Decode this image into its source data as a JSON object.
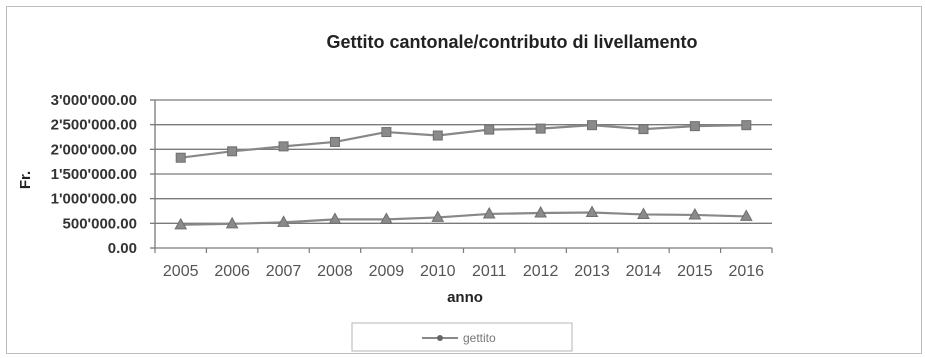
{
  "chart_data": {
    "type": "line",
    "title": "Gettito cantonale/contributo di livellamento",
    "xlabel": "anno",
    "ylabel": "Fr.",
    "categories": [
      "2005",
      "2006",
      "2007",
      "2008",
      "2009",
      "2010",
      "2011",
      "2012",
      "2013",
      "2014",
      "2015",
      "2016"
    ],
    "y_tick_labels": [
      "0.00",
      "500'000.00",
      "1'000'000.00",
      "1'500'000.00",
      "2'000'000.00",
      "2'500'000.00",
      "3'000'000.00"
    ],
    "ylim": [
      0,
      3000000
    ],
    "grid": true,
    "legend_position": "bottom",
    "series": [
      {
        "name": "",
        "marker": "square",
        "color": "#888888",
        "values": [
          1830000,
          1960000,
          2060000,
          2150000,
          2350000,
          2280000,
          2400000,
          2420000,
          2490000,
          2410000,
          2470000,
          2490000
        ]
      },
      {
        "name": "gettito",
        "marker": "triangle",
        "color": "#888888",
        "values": [
          470000,
          490000,
          520000,
          580000,
          580000,
          620000,
          690000,
          710000,
          720000,
          680000,
          670000,
          640000
        ]
      }
    ]
  }
}
